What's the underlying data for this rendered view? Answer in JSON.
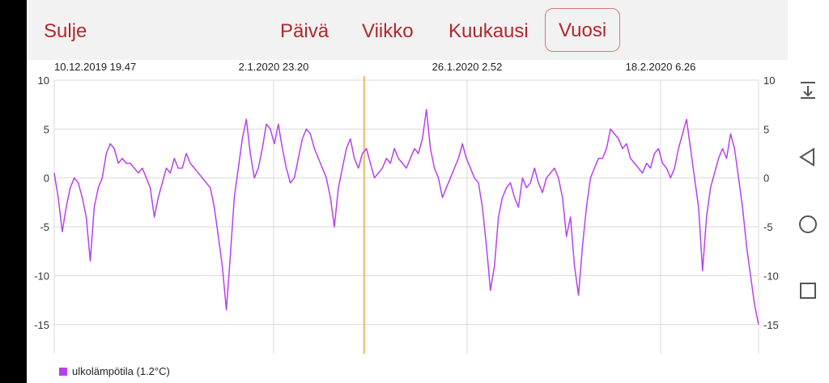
{
  "header": {
    "close_label": "Sulje",
    "tabs": [
      {
        "label": "Päivä",
        "active": false
      },
      {
        "label": "Viikko",
        "active": false
      },
      {
        "label": "Kuukausi",
        "active": false
      },
      {
        "label": "Vuosi",
        "active": true
      }
    ]
  },
  "chart_data": {
    "type": "line",
    "x_tick_labels": [
      "10.12.2019 19.47",
      "2.1.2020 23.20",
      "26.1.2020 2.52",
      "18.2.2020 6.26"
    ],
    "yticks": [
      "10",
      "5",
      "0",
      "-5",
      "-10",
      "-15"
    ],
    "ylim": [
      -18,
      10
    ],
    "grid": true,
    "cursor_fraction": 0.44,
    "colors": {
      "series": "#b840f0",
      "cursor": "#f5b46a",
      "grid": "#d8d8d8"
    },
    "series": [
      {
        "name": "ulkolämpötila (1.2°C)",
        "values": [
          0.5,
          -2,
          -5.5,
          -3,
          -1,
          0,
          -0.5,
          -2,
          -4,
          -8.5,
          -3,
          -1,
          0,
          2.5,
          3.5,
          3,
          1.5,
          2,
          1.5,
          1.5,
          1,
          0.5,
          1,
          0,
          -1,
          -4,
          -2,
          -0.5,
          1,
          0.5,
          2,
          1,
          1,
          2.5,
          1.5,
          1,
          0.5,
          0,
          -0.5,
          -1,
          -3,
          -6,
          -9,
          -13.5,
          -8,
          -2,
          1,
          4,
          6,
          2.5,
          0,
          1,
          3,
          5.5,
          5,
          3.5,
          5.5,
          3,
          1,
          -0.5,
          0,
          2,
          4,
          5,
          4.5,
          3,
          2,
          1,
          0,
          -2,
          -5,
          -1,
          1,
          3,
          4,
          2,
          1,
          2.5,
          3,
          1.5,
          0,
          0.5,
          1,
          2,
          1.5,
          3,
          2,
          1.5,
          1,
          2,
          3,
          2.5,
          4,
          7,
          3,
          1,
          0,
          -2,
          -1,
          0,
          1,
          2,
          3.5,
          2,
          1,
          0,
          -0.5,
          -3,
          -7,
          -11.5,
          -9,
          -4,
          -2,
          -1,
          -0.5,
          -2,
          -3,
          0,
          -1,
          -0.5,
          1,
          -0.5,
          -1.5,
          0,
          0.5,
          1,
          0,
          -2,
          -6,
          -4,
          -9,
          -12,
          -7,
          -3,
          0,
          1,
          2,
          2,
          3,
          5,
          4.5,
          4,
          3,
          3.5,
          2,
          1.5,
          1,
          0.5,
          1.5,
          1,
          2.5,
          3,
          1.5,
          1,
          0,
          1,
          3,
          4.5,
          6,
          3,
          0,
          -3,
          -9.5,
          -4,
          -1,
          0.5,
          2,
          3,
          2,
          4.5,
          3,
          0,
          -3,
          -7,
          -10,
          -13,
          -15
        ]
      }
    ]
  }
}
